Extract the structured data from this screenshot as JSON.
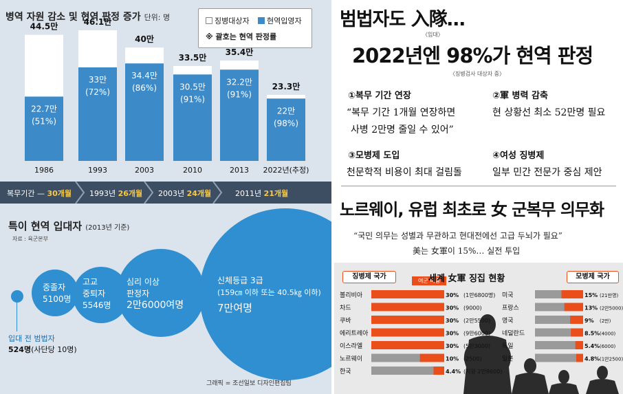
{
  "colors": {
    "panel_bg": "#dbe3ec",
    "bar_blue": "#3d8ac9",
    "bubble_blue": "#2f8fd0",
    "timeline_bg": "#3e4e62",
    "highlight_yellow": "#f7c948",
    "accent_orange": "#e94e1b",
    "bar_gray": "#9a9a9a"
  },
  "left": {
    "title": "병역 자원 감소 및 현역 판정 증가",
    "unit": "단위: 명",
    "legend": {
      "subject": "징병대상자",
      "enlisted": "현역입영자",
      "note": "※ 괄호는 현역 판정률"
    },
    "timeline": [
      {
        "prefix": "복무기간 — ",
        "value": "30개월"
      },
      {
        "prefix": "1993년 ",
        "value": "26개월"
      },
      {
        "prefix": "2003년 ",
        "value": "24개월"
      },
      {
        "prefix": "2011년 ",
        "value": "21개월"
      }
    ],
    "bottom": {
      "title": "특이 현역 입대자",
      "subtitle": "(2013년 기준)",
      "source": "자료 : 육군본부",
      "small_label": "입대 전 범법자",
      "small_value": "524명",
      "small_extra": "(사단당 10명)",
      "b1": [
        "중졸자",
        "5100명"
      ],
      "b2": [
        "고교",
        "중퇴자",
        "5546명"
      ],
      "b3": [
        "심리 이상",
        "판정자",
        "2만6000여명"
      ],
      "b4": [
        "신체등급 3급",
        "(159㎝ 이하 또는 40.5㎏ 이하)",
        "7만여명"
      ]
    },
    "credit": "그래픽 = 조선일보 디자인편집팀"
  },
  "chart_data": [
    {
      "type": "bar",
      "title": "병역 자원 감소 및 현역 판정 증가",
      "unit": "단위: 명",
      "categories": [
        "1986",
        "1993",
        "2003",
        "2010",
        "2013",
        "2022년(추정)"
      ],
      "series": [
        {
          "name": "징병대상자",
          "values": [
            445000,
            461000,
            400000,
            335000,
            354000,
            233000
          ],
          "labels": [
            "44.5만",
            "46.1만",
            "40만",
            "33.5만",
            "35.4만",
            "23.3만"
          ]
        },
        {
          "name": "현역입영자",
          "values": [
            227000,
            330000,
            344000,
            305000,
            322000,
            220000
          ],
          "labels": [
            "22.7만",
            "33만",
            "34.4만",
            "30.5만",
            "32.2만",
            "22만"
          ],
          "rates": [
            "(51%)",
            "(72%)",
            "(86%)",
            "(91%)",
            "(91%)",
            "(98%)"
          ]
        }
      ],
      "ylim": [
        0,
        500000
      ]
    },
    {
      "type": "bar",
      "orientation": "horizontal",
      "title": "세계 女軍 징집 현황",
      "series_label": "여군 비중",
      "groups": [
        {
          "name": "징병제 국가",
          "categories": [
            "볼리비아",
            "차드",
            "쿠바",
            "에리트레아",
            "이스라엘",
            "노르웨이",
            "한국"
          ],
          "values": [
            30,
            30,
            30,
            30,
            30,
            10,
            4.4
          ],
          "labels": [
            "30%",
            "30%",
            "30%",
            "30%",
            "30%",
            "10%",
            "4.4%"
          ],
          "counts": [
            "(1만6800명)",
            "(9000)",
            "(2만5500)",
            "(9만6000)",
            "(5만3000)",
            "(2500)",
            "(지원 2만8600)"
          ]
        },
        {
          "name": "모병제 국가",
          "categories": [
            "미국",
            "프랑스",
            "영국",
            "네덜란드",
            "독일",
            "일본"
          ],
          "values": [
            15,
            13,
            9,
            8.5,
            5.4,
            4.8
          ],
          "labels": [
            "15%",
            "13%",
            "9%",
            "8.5%",
            "5.4%",
            "4.8%"
          ],
          "counts": [
            "(21만명)",
            "(2만5000)",
            "(2만)",
            "(4000)",
            "(6000)",
            "(1만2500)"
          ]
        }
      ],
      "xlim": [
        0,
        30
      ]
    }
  ],
  "right": {
    "headline1": "범법자도 入隊…",
    "note1": "〈입대〉",
    "headline2": "2022년엔 98%가 현역 판정",
    "note2": "〈징병검사 대상자 중〉",
    "points": [
      {
        "h": "①복무 기간 연장",
        "b1": "“복무 기간 1개월 연장하면",
        "b2": "사병 2만명 줄일 수 있어”"
      },
      {
        "h": "②軍 병력 감축",
        "b1": "현 상황선 최소 52만명 필요",
        "b2": ""
      },
      {
        "h": "③모병제 도입",
        "b1": "천문학적 비용이 최대 걸림돌",
        "b2": ""
      },
      {
        "h": "④여성 징병제",
        "b1": "일부 민간 전문가 중심 제안",
        "b2": ""
      }
    ],
    "headline3": "노르웨이, 유럽 최초로 女 군복무 의무화",
    "quote1": "“국민 의무는 성별과 무관하고  현대전에선 고급 두뇌가 필요”",
    "quote2": "美는 女軍이 15%… 실전 투입",
    "box": {
      "title": "세계 女軍 징집 현황",
      "left_tag": "징병제 국가",
      "right_tag": "모병제 국가",
      "ratio_tag": "여군 비중"
    }
  }
}
